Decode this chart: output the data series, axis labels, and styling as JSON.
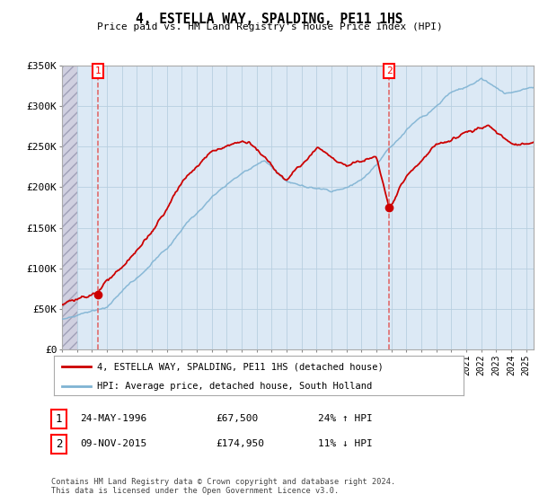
{
  "title": "4, ESTELLA WAY, SPALDING, PE11 1HS",
  "subtitle": "Price paid vs. HM Land Registry's House Price Index (HPI)",
  "ylim": [
    0,
    350000
  ],
  "yticks": [
    0,
    50000,
    100000,
    150000,
    200000,
    250000,
    300000,
    350000
  ],
  "ytick_labels": [
    "£0",
    "£50K",
    "£100K",
    "£150K",
    "£200K",
    "£250K",
    "£300K",
    "£350K"
  ],
  "sale1_year": 1996.38,
  "sale1_price": 67500,
  "sale2_year": 2015.85,
  "sale2_price": 174950,
  "legend_line1": "4, ESTELLA WAY, SPALDING, PE11 1HS (detached house)",
  "legend_line2": "HPI: Average price, detached house, South Holland",
  "table_row1": [
    "1",
    "24-MAY-1996",
    "£67,500",
    "24% ↑ HPI"
  ],
  "table_row2": [
    "2",
    "09-NOV-2015",
    "£174,950",
    "11% ↓ HPI"
  ],
  "footer": "Contains HM Land Registry data © Crown copyright and database right 2024.\nThis data is licensed under the Open Government Licence v3.0.",
  "line_color_red": "#cc0000",
  "line_color_blue": "#7fb3d3",
  "chart_bg": "#dce9f5",
  "grid_color": "#b8cfe0",
  "vline_color": "#e06060",
  "hatch_color": "#c8c8d8",
  "xmin": 1994.0,
  "xmax": 2025.5
}
